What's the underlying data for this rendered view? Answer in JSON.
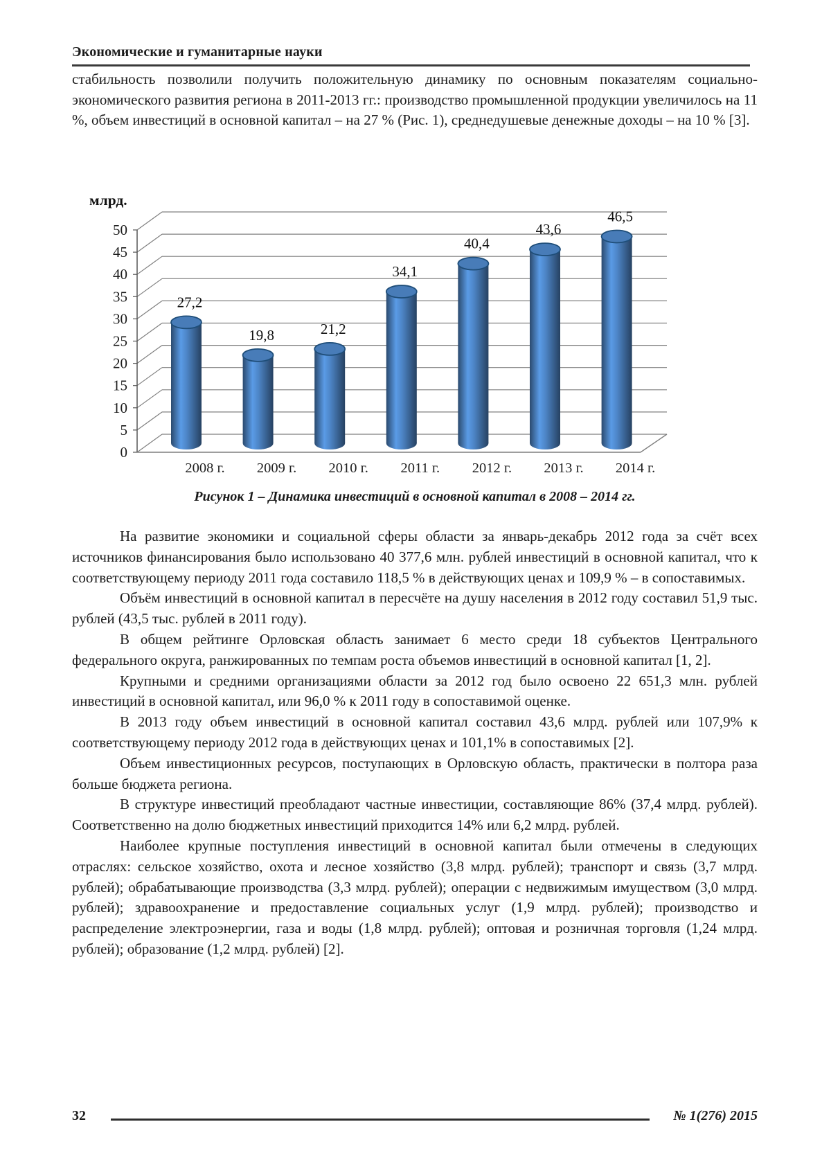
{
  "page": {
    "running_head": "Экономические и гуманитарные науки",
    "page_number": "32",
    "issue": "№ 1(276) 2015"
  },
  "intro_paragraph": "стабильность позволили получить положительную динамику по основным показателям социально-экономического развития региона в 2011-2013 гг.: производство промышленной продукции увеличилось на 11 %, объем инвестиций в основной капитал – на 27 % (Рис. 1), среднедушевые денежные доходы – на 10 % [3].",
  "figure": {
    "caption": "Рисунок 1 – Динамика инвестиций в основной капитал в 2008 – 2014 гг."
  },
  "chart_data": {
    "type": "bar",
    "subtype": "3d-cylinder-column",
    "title": "",
    "xlabel": "",
    "ylabel": "млрд.",
    "categories": [
      "2008 г.",
      "2009 г.",
      "2010 г.",
      "2011 г.",
      "2012 г.",
      "2013 г.",
      "2014 г."
    ],
    "values": [
      27.2,
      19.8,
      21.2,
      34.1,
      40.4,
      43.6,
      46.5
    ],
    "value_labels": [
      "27,2",
      "19,8",
      "21,2",
      "34,1",
      "40,4",
      "43,6",
      "46,5"
    ],
    "ylim": [
      0,
      50
    ],
    "ytick_step": 5,
    "grid": true,
    "legend_position": "none",
    "bar_color": "#4577B1",
    "bar_outline_color": "#1F4E79",
    "gridline_color": "#7F7F7F",
    "axis_color": "#555555"
  },
  "paragraphs": [
    "На развитие экономики и социальной сферы области за январь-декабрь 2012 года за счёт всех источников финансирования было использовано 40 377,6 млн. рублей инвестиций в основной капитал, что к соответствующему периоду 2011 года составило 118,5 % в действующих ценах и 109,9 % – в сопоставимых.",
    "Объём инвестиций в основной капитал в пересчёте на душу населения в 2012 году составил 51,9 тыс. рублей (43,5 тыс. рублей в 2011 году).",
    "В общем рейтинге Орловская область занимает 6 место среди 18 субъектов Центрального федерального округа, ранжированных по темпам роста объемов инвестиций в основной капитал [1, 2].",
    "Крупными и средними организациями области за 2012 год было освоено 22 651,3 млн. рублей инвестиций в основной капитал, или 96,0 % к 2011 году в сопоставимой оценке.",
    "В 2013 году объем инвестиций в основной капитал составил 43,6 млрд. рублей или 107,9% к соответствующему периоду 2012 года в действующих ценах и 101,1% в сопоставимых [2].",
    "Объем инвестиционных ресурсов, поступающих в Орловскую область, практически в полтора раза больше бюджета региона.",
    "В структуре инвестиций преобладают частные инвестиции, составляющие 86% (37,4 млрд. рублей). Соответственно на долю бюджетных инвестиций приходится 14% или 6,2 млрд. рублей.",
    "Наиболее крупные поступления инвестиций в основной капитал были отмечены в следующих отраслях: сельское хозяйство, охота и лесное хозяйство (3,8 млрд. рублей); транспорт и связь (3,7 млрд. рублей); обрабатывающие производства (3,3 млрд. рублей); операции с недвижимым имуществом (3,0 млрд. рублей); здравоохранение и предоставление социальных услуг (1,9 млрд. рублей); производство и распределение электроэнергии, газа и воды (1,8 млрд. рублей); оптовая и розничная торговля (1,24 млрд. рублей); образование (1,2 млрд. рублей) [2]."
  ]
}
